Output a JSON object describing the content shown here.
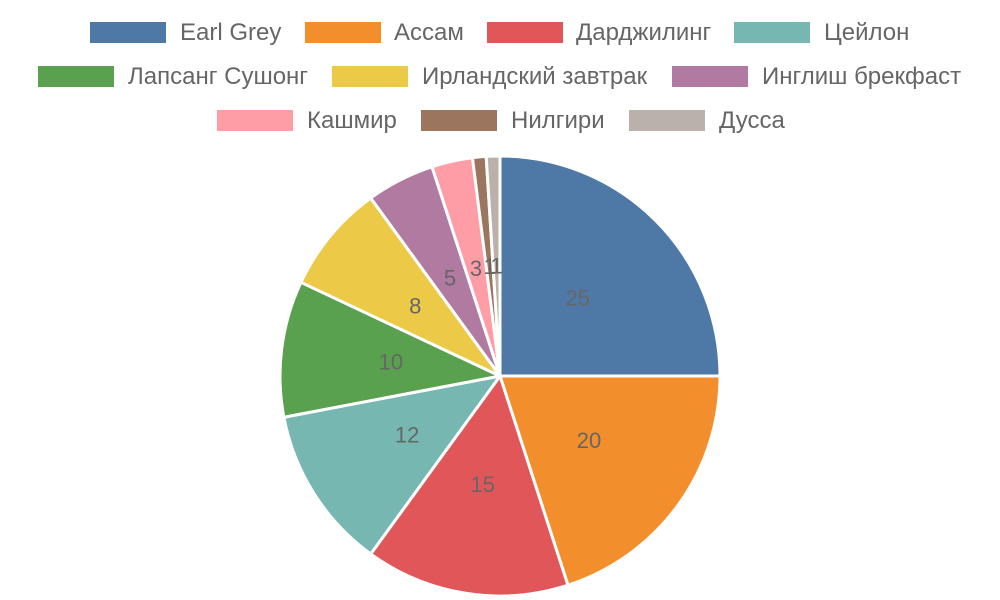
{
  "chart_data": {
    "type": "pie",
    "title": "",
    "show_value_labels": true,
    "legend_position": "top",
    "categories": [
      "Earl Grey",
      "Ассам",
      "Дарджилинг",
      "Цейлон",
      "Лапсанг Сушонг",
      "Ирландский завтрак",
      "Инглиш брекфаст",
      "Кашмир",
      "Нилгири",
      "Дусса"
    ],
    "values": [
      25,
      20,
      15,
      12,
      10,
      8,
      5,
      3,
      1,
      1
    ],
    "colors": [
      "#4e79a7",
      "#f28e2b",
      "#e15759",
      "#76b7b2",
      "#59a14f",
      "#edc948",
      "#b07aa1",
      "#ff9da7",
      "#9c755f",
      "#bab0ac"
    ]
  }
}
